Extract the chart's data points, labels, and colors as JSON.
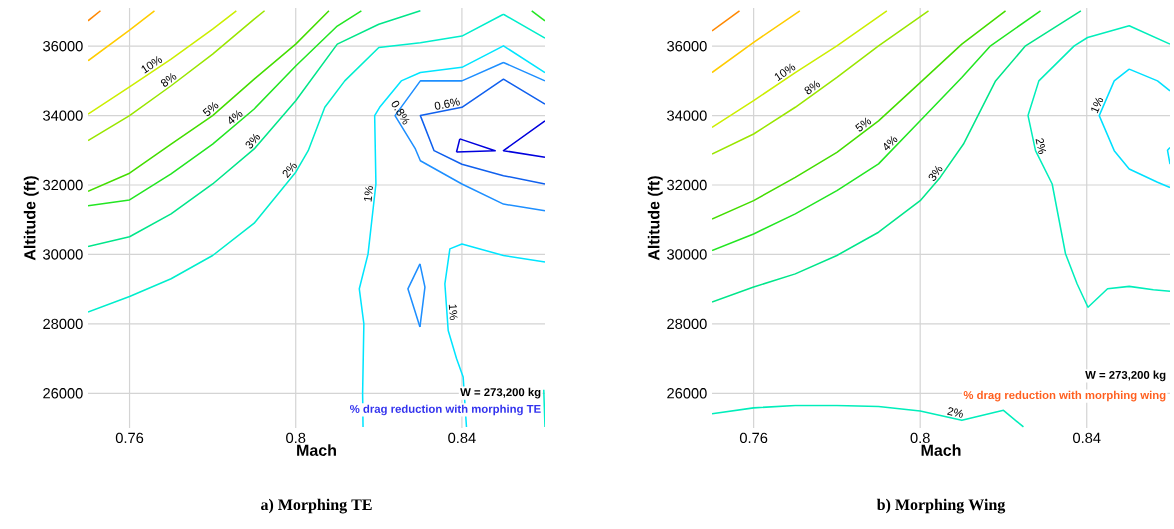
{
  "chart_data": [
    {
      "type": "line",
      "title": "a) Morphing TE",
      "xlabel": "Mach",
      "ylabel": "Altitude (ft)",
      "xlim": [
        0.75,
        0.86
      ],
      "ylim": [
        25000,
        37100
      ],
      "xticks": [
        0.76,
        0.8,
        0.84
      ],
      "yticks": [
        26000,
        28000,
        30000,
        32000,
        34000,
        36000
      ],
      "grid": true,
      "annotations": [
        "W = 273,200 kg",
        "% drag reduction with morphing TE"
      ],
      "series": [
        {
          "color": "#ff8800",
          "x": [
            0.75,
            0.753
          ],
          "values": [
            36730,
            37020
          ]
        },
        {
          "color": "#ffcc00",
          "x": [
            0.75,
            0.76,
            0.766
          ],
          "values": [
            35580,
            36460,
            37020
          ]
        },
        {
          "name": "10%",
          "color": "#ccee00",
          "x": [
            0.75,
            0.76,
            0.77,
            0.78,
            0.7857
          ],
          "values": [
            34040,
            34830,
            35630,
            36490,
            37020
          ]
        },
        {
          "name": "8%",
          "color": "#99e600",
          "x": [
            0.75,
            0.76,
            0.77,
            0.78,
            0.79,
            0.7925
          ],
          "values": [
            33280,
            34000,
            34860,
            35770,
            36780,
            37020
          ]
        },
        {
          "name": "5%",
          "color": "#44dd00",
          "x": [
            0.75,
            0.76,
            0.77,
            0.78,
            0.79,
            0.8,
            0.808
          ],
          "values": [
            31820,
            32340,
            33180,
            34000,
            35050,
            36060,
            37020
          ]
        },
        {
          "name": "4%",
          "color": "#22e622",
          "x": [
            0.75,
            0.76,
            0.77,
            0.78,
            0.79,
            0.8,
            0.81,
            0.8158
          ],
          "values": [
            31400,
            31570,
            32320,
            33180,
            34190,
            35430,
            36580,
            37020
          ]
        },
        {
          "name": "3%",
          "color": "#00e68a",
          "x": [
            0.75,
            0.76,
            0.77,
            0.78,
            0.79,
            0.8,
            0.81,
            0.82,
            0.83
          ],
          "values": [
            30230,
            30510,
            31170,
            32030,
            33040,
            34430,
            36060,
            36630,
            37020
          ]
        },
        {
          "color": "#22e622",
          "x": [
            0.8568,
            0.86
          ],
          "values": [
            37020,
            36730
          ]
        },
        {
          "name": "2%",
          "color": "#00eecc",
          "x": [
            0.75,
            0.76,
            0.77,
            0.78,
            0.79,
            0.8,
            0.803,
            0.807,
            0.8118,
            0.82,
            0.83,
            0.84,
            0.85,
            0.86
          ],
          "values": [
            28340,
            28790,
            29300,
            29970,
            30900,
            32370,
            32990,
            34240,
            35000,
            35960,
            36100,
            36290,
            36920,
            36230
          ]
        },
        {
          "name": "1%",
          "color": "#00e5ff",
          "x": [
            0.86,
            0.85,
            0.84,
            0.83,
            0.8254,
            0.8202,
            0.819,
            0.8193,
            0.8174,
            0.8153,
            0.8164,
            0.8161,
            0.8162
          ],
          "values": [
            35240,
            36010,
            35390,
            35240,
            35000,
            34240,
            34000,
            32030,
            30010,
            29010,
            28000,
            26000,
            25030
          ]
        },
        {
          "name": "0.8%",
          "color": "#1e8fff",
          "x": [
            0.86,
            0.85,
            0.84,
            0.83,
            0.8239,
            0.8288,
            0.83,
            0.84,
            0.85,
            0.86
          ],
          "values": [
            35000,
            35530,
            35000,
            35000,
            34000,
            33040,
            32700,
            32030,
            31450,
            31260
          ]
        },
        {
          "name": "0.6%",
          "color": "#1060ee",
          "x": [
            0.86,
            0.85,
            0.84,
            0.83,
            0.8333,
            0.84,
            0.85,
            0.86
          ],
          "values": [
            34330,
            35050,
            34240,
            34000,
            32990,
            32600,
            32270,
            32030
          ]
        },
        {
          "color": "#0000dd",
          "x": [
            0.86,
            0.85,
            0.86
          ],
          "values": [
            33850,
            32990,
            32800
          ]
        },
        {
          "color": "#0000dd",
          "x": [
            0.8395,
            0.848,
            0.8387
          ],
          "values": [
            33330,
            32990,
            32950
          ]
        },
        {
          "color": "#0000dd",
          "x": [
            0.8387,
            0.8395
          ],
          "values": [
            32950,
            33330
          ]
        },
        {
          "color": "#1e8fff",
          "x": [
            0.8299,
            0.8311,
            0.8299
          ],
          "values": [
            29730,
            29060,
            27910
          ]
        },
        {
          "color": "#1e8fff",
          "x": [
            0.8299,
            0.827,
            0.8299
          ],
          "values": [
            27910,
            29010,
            29730
          ]
        },
        {
          "name": "1%",
          "color": "#00e5ff",
          "x": [
            0.86,
            0.85,
            0.84,
            0.8371,
            0.8359,
            0.8367,
            0.8387,
            0.8403,
            0.8411
          ],
          "values": [
            29780,
            29970,
            30300,
            30160,
            29150,
            27810,
            27000,
            26470,
            25030
          ]
        },
        {
          "color": "#00eecc",
          "x": [
            0.8597,
            0.86
          ],
          "values": [
            26100,
            25030
          ]
        }
      ]
    },
    {
      "type": "line",
      "title": "b) Morphing Wing",
      "xlabel": "Mach",
      "ylabel": "Altitude (ft)",
      "xlim": [
        0.75,
        0.86
      ],
      "ylim": [
        25000,
        37100
      ],
      "xticks": [
        0.76,
        0.8,
        0.84
      ],
      "yticks": [
        26000,
        28000,
        30000,
        32000,
        34000,
        36000
      ],
      "grid": true,
      "annotations": [
        "W = 273,200 kg",
        "% drag reduction with morphing wing"
      ],
      "series": [
        {
          "color": "#ff8800",
          "x": [
            0.75,
            0.7566
          ],
          "values": [
            36440,
            37020
          ]
        },
        {
          "color": "#ffcc00",
          "x": [
            0.75,
            0.76,
            0.7711
          ],
          "values": [
            35240,
            36110,
            37020
          ]
        },
        {
          "name": "10%",
          "color": "#ccee00",
          "x": [
            0.75,
            0.76,
            0.77,
            0.78,
            0.792
          ],
          "values": [
            33660,
            34430,
            35240,
            36010,
            37020
          ]
        },
        {
          "name": "8%",
          "color": "#99e600",
          "x": [
            0.75,
            0.76,
            0.77,
            0.78,
            0.79,
            0.802
          ],
          "values": [
            32890,
            33470,
            34240,
            35100,
            36010,
            37020
          ]
        },
        {
          "name": "5%",
          "color": "#44dd00",
          "x": [
            0.75,
            0.76,
            0.77,
            0.78,
            0.79,
            0.8,
            0.81,
            0.8205
          ],
          "values": [
            31020,
            31550,
            32220,
            32940,
            33850,
            34950,
            36060,
            37020
          ]
        },
        {
          "name": "4%",
          "color": "#22e622",
          "x": [
            0.75,
            0.76,
            0.77,
            0.78,
            0.79,
            0.8,
            0.81,
            0.8169,
            0.8289
          ],
          "values": [
            30110,
            30590,
            31170,
            31840,
            32610,
            33850,
            35100,
            36010,
            37020
          ]
        },
        {
          "name": "3%",
          "color": "#00e68a",
          "x": [
            0.75,
            0.76,
            0.77,
            0.78,
            0.79,
            0.8,
            0.8048,
            0.8104,
            0.8181,
            0.8253,
            0.8386
          ],
          "values": [
            28630,
            29060,
            29440,
            29970,
            30640,
            31550,
            32220,
            33180,
            35000,
            36010,
            37020
          ]
        },
        {
          "name": "2%",
          "color": "#00eebb",
          "x": [
            0.86,
            0.8502,
            0.8402,
            0.837,
            0.8285,
            0.8259,
            0.8277,
            0.8317,
            0.8349,
            0.8377,
            0.8403,
            0.845,
            0.8502,
            0.856,
            0.86
          ],
          "values": [
            36060,
            36590,
            36250,
            36010,
            35000,
            34000,
            32990,
            32030,
            30020,
            29150,
            28480,
            29010,
            29080,
            28980,
            28940
          ]
        },
        {
          "name": "1%",
          "color": "#00e0ff",
          "x": [
            0.86,
            0.857,
            0.8502,
            0.8466,
            0.843,
            0.8466,
            0.8502,
            0.857,
            0.86
          ],
          "values": [
            34710,
            35000,
            35340,
            35000,
            34000,
            32990,
            32460,
            32080,
            31930
          ]
        },
        {
          "color": "#00e0ff",
          "x": [
            0.86,
            0.8594,
            0.86
          ],
          "values": [
            33080,
            33000,
            32600
          ]
        },
        {
          "name": "2%",
          "color": "#00eebb",
          "x": [
            0.75,
            0.76,
            0.77,
            0.78,
            0.79,
            0.8,
            0.81,
            0.82,
            0.8248
          ],
          "values": [
            25410,
            25580,
            25650,
            25650,
            25620,
            25490,
            25220,
            25510,
            25030
          ]
        }
      ]
    }
  ]
}
